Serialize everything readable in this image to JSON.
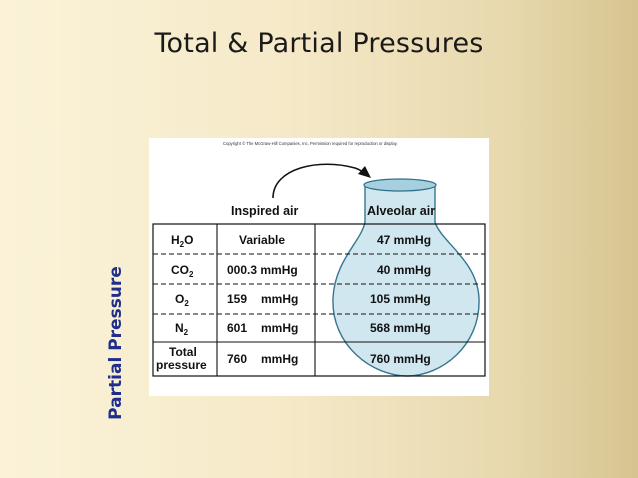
{
  "slide": {
    "title": "Total & Partial Pressures",
    "side_label": "Partial Pressure"
  },
  "figure": {
    "copyright": "Copyright © The McGraw-Hill Companies, Inc. Permission required for reproduction or display.",
    "headers": {
      "inspired": "Inspired air",
      "alveolar": "Alveolar air"
    },
    "rows": [
      {
        "gas_main": "H",
        "gas_sub": "2",
        "gas_tail": "O",
        "inspired": "Variable",
        "inspired_unit": "",
        "alveolar": "47 mmHg"
      },
      {
        "gas_main": "CO",
        "gas_sub": "2",
        "gas_tail": "",
        "inspired": "000.3 mmHg",
        "inspired_unit": "",
        "alveolar": "40 mmHg"
      },
      {
        "gas_main": "O",
        "gas_sub": "2",
        "gas_tail": "",
        "inspired": "159",
        "inspired_unit": "mmHg",
        "alveolar": "105 mmHg"
      },
      {
        "gas_main": "N",
        "gas_sub": "2",
        "gas_tail": "",
        "inspired": "601",
        "inspired_unit": "mmHg",
        "alveolar": "568 mmHg"
      }
    ],
    "total_row": {
      "label_line1": "Total",
      "label_line2": "pressure",
      "inspired": "760",
      "inspired_unit": "mmHg",
      "alveolar": "760 mmHg"
    },
    "colors": {
      "flask_fill": "#cfe6ef",
      "flask_stroke": "#2c6f8a",
      "title_color": "#1a1a1a",
      "side_label_color": "#1f2e8c"
    }
  }
}
